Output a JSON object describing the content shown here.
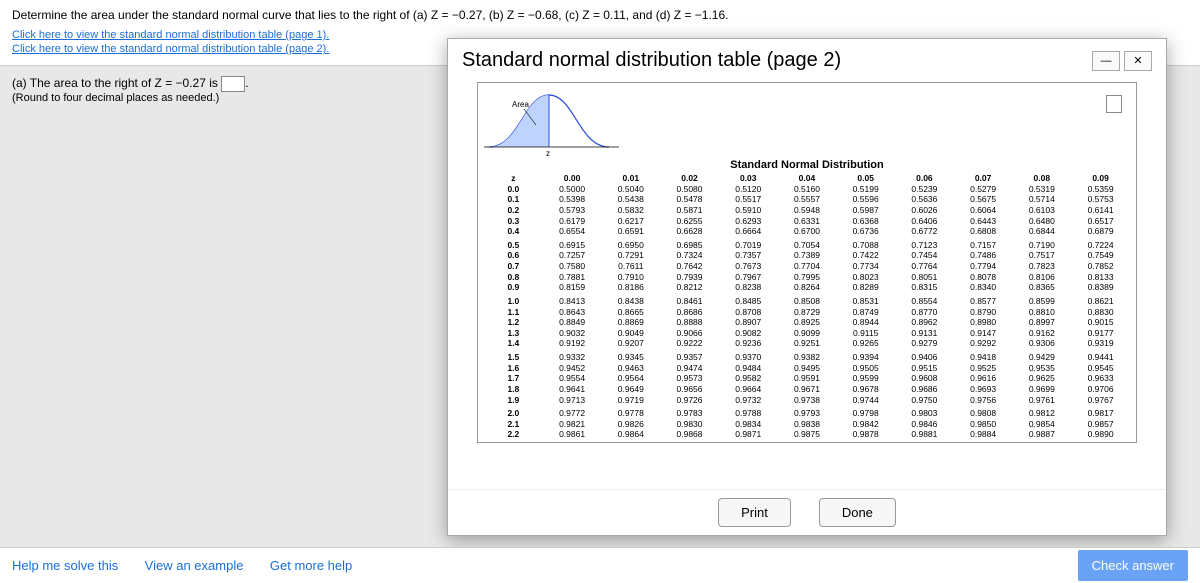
{
  "question": {
    "prompt": "Determine the area under the standard normal curve that lies to the right of (a) Z = −0.27, (b) Z = −0.68, (c) Z = 0.11, and (d) Z = −1.16.",
    "link1": "Click here to view the standard normal distribution table (page 1).",
    "link2": "Click here to view the standard normal distribution table (page 2).",
    "part_a_line1": "(a) The area to the right of Z = −0.27 is",
    "part_a_line2": "(Round to four decimal places as needed.)"
  },
  "modal": {
    "title": "Standard normal distribution table (page 2)",
    "table_title": "Standard Normal Distribution",
    "curve_label": "Area",
    "z_axis_label": "z",
    "col_headers": [
      "z",
      "0.00",
      "0.01",
      "0.02",
      "0.03",
      "0.04",
      "0.05",
      "0.06",
      "0.07",
      "0.08",
      "0.09"
    ],
    "row_labels": [
      "0.0",
      "0.1",
      "0.2",
      "0.3",
      "0.4",
      "0.5",
      "0.6",
      "0.7",
      "0.8",
      "0.9",
      "1.0",
      "1.1",
      "1.2",
      "1.3",
      "1.4",
      "1.5",
      "1.6",
      "1.7",
      "1.8",
      "1.9",
      "2.0",
      "2.1",
      "2.2"
    ],
    "rows": [
      [
        "0.5000",
        "0.5040",
        "0.5080",
        "0.5120",
        "0.5160",
        "0.5199",
        "0.5239",
        "0.5279",
        "0.5319",
        "0.5359"
      ],
      [
        "0.5398",
        "0.5438",
        "0.5478",
        "0.5517",
        "0.5557",
        "0.5596",
        "0.5636",
        "0.5675",
        "0.5714",
        "0.5753"
      ],
      [
        "0.5793",
        "0.5832",
        "0.5871",
        "0.5910",
        "0.5948",
        "0.5987",
        "0.6026",
        "0.6064",
        "0.6103",
        "0.6141"
      ],
      [
        "0.6179",
        "0.6217",
        "0.6255",
        "0.6293",
        "0.6331",
        "0.6368",
        "0.6406",
        "0.6443",
        "0.6480",
        "0.6517"
      ],
      [
        "0.6554",
        "0.6591",
        "0.6628",
        "0.6664",
        "0.6700",
        "0.6736",
        "0.6772",
        "0.6808",
        "0.6844",
        "0.6879"
      ],
      [
        "0.6915",
        "0.6950",
        "0.6985",
        "0.7019",
        "0.7054",
        "0.7088",
        "0.7123",
        "0.7157",
        "0.7190",
        "0.7224"
      ],
      [
        "0.7257",
        "0.7291",
        "0.7324",
        "0.7357",
        "0.7389",
        "0.7422",
        "0.7454",
        "0.7486",
        "0.7517",
        "0.7549"
      ],
      [
        "0.7580",
        "0.7611",
        "0.7642",
        "0.7673",
        "0.7704",
        "0.7734",
        "0.7764",
        "0.7794",
        "0.7823",
        "0.7852"
      ],
      [
        "0.7881",
        "0.7910",
        "0.7939",
        "0.7967",
        "0.7995",
        "0.8023",
        "0.8051",
        "0.8078",
        "0.8106",
        "0.8133"
      ],
      [
        "0.8159",
        "0.8186",
        "0.8212",
        "0.8238",
        "0.8264",
        "0.8289",
        "0.8315",
        "0.8340",
        "0.8365",
        "0.8389"
      ],
      [
        "0.8413",
        "0.8438",
        "0.8461",
        "0.8485",
        "0.8508",
        "0.8531",
        "0.8554",
        "0.8577",
        "0.8599",
        "0.8621"
      ],
      [
        "0.8643",
        "0.8665",
        "0.8686",
        "0.8708",
        "0.8729",
        "0.8749",
        "0.8770",
        "0.8790",
        "0.8810",
        "0.8830"
      ],
      [
        "0.8849",
        "0.8869",
        "0.8888",
        "0.8907",
        "0.8925",
        "0.8944",
        "0.8962",
        "0.8980",
        "0.8997",
        "0.9015"
      ],
      [
        "0.9032",
        "0.9049",
        "0.9066",
        "0.9082",
        "0.9099",
        "0.9115",
        "0.9131",
        "0.9147",
        "0.9162",
        "0.9177"
      ],
      [
        "0.9192",
        "0.9207",
        "0.9222",
        "0.9236",
        "0.9251",
        "0.9265",
        "0.9279",
        "0.9292",
        "0.9306",
        "0.9319"
      ],
      [
        "0.9332",
        "0.9345",
        "0.9357",
        "0.9370",
        "0.9382",
        "0.9394",
        "0.9406",
        "0.9418",
        "0.9429",
        "0.9441"
      ],
      [
        "0.9452",
        "0.9463",
        "0.9474",
        "0.9484",
        "0.9495",
        "0.9505",
        "0.9515",
        "0.9525",
        "0.9535",
        "0.9545"
      ],
      [
        "0.9554",
        "0.9564",
        "0.9573",
        "0.9582",
        "0.9591",
        "0.9599",
        "0.9608",
        "0.9616",
        "0.9625",
        "0.9633"
      ],
      [
        "0.9641",
        "0.9649",
        "0.9656",
        "0.9664",
        "0.9671",
        "0.9678",
        "0.9686",
        "0.9693",
        "0.9699",
        "0.9706"
      ],
      [
        "0.9713",
        "0.9719",
        "0.9726",
        "0.9732",
        "0.9738",
        "0.9744",
        "0.9750",
        "0.9756",
        "0.9761",
        "0.9767"
      ],
      [
        "0.9772",
        "0.9778",
        "0.9783",
        "0.9788",
        "0.9793",
        "0.9798",
        "0.9803",
        "0.9808",
        "0.9812",
        "0.9817"
      ],
      [
        "0.9821",
        "0.9826",
        "0.9830",
        "0.9834",
        "0.9838",
        "0.9842",
        "0.9846",
        "0.9850",
        "0.9854",
        "0.9857"
      ],
      [
        "0.9861",
        "0.9864",
        "0.9868",
        "0.9871",
        "0.9875",
        "0.9878",
        "0.9881",
        "0.9884",
        "0.9887",
        "0.9890"
      ]
    ],
    "print_label": "Print",
    "done_label": "Done"
  },
  "footer": {
    "help": "Help me solve this",
    "example": "View an example",
    "more": "Get more help",
    "check": "Check answer"
  },
  "style": {
    "link_color": "#1a6ed8",
    "modal_bg": "#ffffff",
    "page_bg": "#e8e8e8",
    "curve_stroke": "#2a4cd7",
    "curve_fill": "#bfd3ff"
  }
}
